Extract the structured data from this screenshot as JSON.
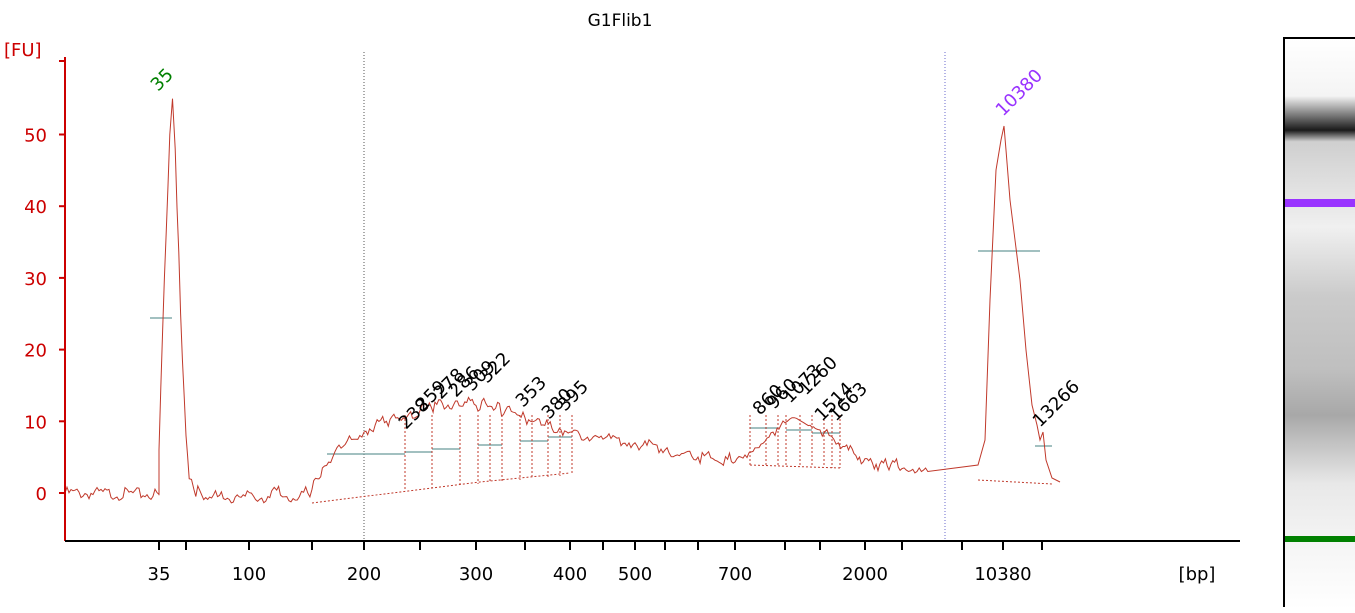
{
  "chart_data": {
    "type": "line",
    "title": "G1Flib1",
    "ylabel": "[FU]",
    "xlabel": "[bp]",
    "y_ticks": [
      0,
      10,
      20,
      30,
      40,
      50
    ],
    "ylim": [
      -7,
      58
    ],
    "x_tick_labels": [
      "35",
      "100",
      "200",
      "300",
      "400",
      "500",
      "700",
      "2000",
      "10380"
    ],
    "series": [
      {
        "x": [
          25,
          40,
          45,
          48,
          50,
          52,
          54,
          55,
          56,
          58,
          60,
          62,
          65,
          70,
          80,
          95,
          115,
          118,
          120,
          122,
          125,
          130,
          140,
          150,
          155,
          160,
          170,
          180,
          190,
          200,
          210,
          220,
          230,
          240,
          250,
          260,
          270,
          280,
          290,
          300,
          310,
          320,
          330,
          340,
          350,
          360,
          370,
          380,
          390,
          400,
          450,
          500,
          600,
          650,
          700,
          720,
          740,
          760,
          780,
          800,
          820,
          840,
          860,
          880,
          900,
          920,
          940,
          960,
          980,
          1000,
          1020,
          1040,
          1060,
          1080,
          1100,
          1120,
          1140,
          1160,
          1180,
          1200,
          1230,
          1260,
          1300,
          1360,
          1420,
          1480,
          1540,
          1600,
          1700,
          1800,
          1900,
          2000,
          2100,
          2200,
          2300,
          2400,
          2500,
          2600,
          2700,
          2800,
          2900,
          3000,
          3100,
          3200,
          3300,
          3400,
          3500,
          3600,
          3700,
          3800,
          3900,
          4000,
          4200
        ],
        "y": [
          0,
          -0.2,
          -0.3,
          0.5,
          6,
          30,
          50,
          55,
          48,
          25,
          8,
          2,
          0.5,
          -0.3,
          -0.5,
          -0.6,
          -0.5,
          0.3,
          0.8,
          0.4,
          -0.3,
          -0.5,
          -0.5,
          0.5,
          2,
          3.5,
          5,
          6.5,
          7.5,
          8.5,
          9.5,
          10,
          10.5,
          11,
          11.5,
          12,
          12.5,
          12.3,
          12.7,
          12.2,
          12.5,
          11.8,
          11.5,
          11.2,
          10.5,
          10,
          9.5,
          9,
          8.8,
          8.5,
          7.5,
          7,
          6,
          5.5,
          5,
          4.8,
          4.7,
          4.8,
          5,
          5.3,
          5.6,
          5.8,
          6.3,
          6.8,
          7.2,
          7.8,
          8.5,
          9,
          9.5,
          9.8,
          10,
          10.3,
          10.5,
          10.5,
          10.4,
          10.2,
          10,
          9.8,
          9.6,
          9.4,
          9.2,
          9,
          8.8,
          8.5,
          8,
          7.5,
          7,
          6.5,
          6,
          5.5,
          5,
          4.8,
          4.5,
          4.2,
          4,
          4,
          4.2,
          3.8,
          4,
          4.3,
          3.6,
          3.4,
          3.5,
          3.2,
          3,
          3.1,
          3.3,
          2.8,
          3,
          3.5,
          3,
          3.2,
          3
        ]
      }
    ],
    "peak_labels": [
      "35",
      "238",
      "259",
      "278",
      "286",
      "309",
      "322",
      "353",
      "380",
      "395",
      "860",
      "960",
      "1073",
      "1260",
      "1514",
      "1663",
      "10380",
      "13266"
    ],
    "colors": {
      "axis": "#cc0000",
      "trace": "#c0392b",
      "lower_marker": "#008000",
      "upper_marker": "#9933ff",
      "baseline": "#6a9a9a",
      "peak_label": "#000000"
    }
  },
  "gel": {
    "upper_marker_color": "#9933ff",
    "lower_marker_color": "#008000"
  }
}
